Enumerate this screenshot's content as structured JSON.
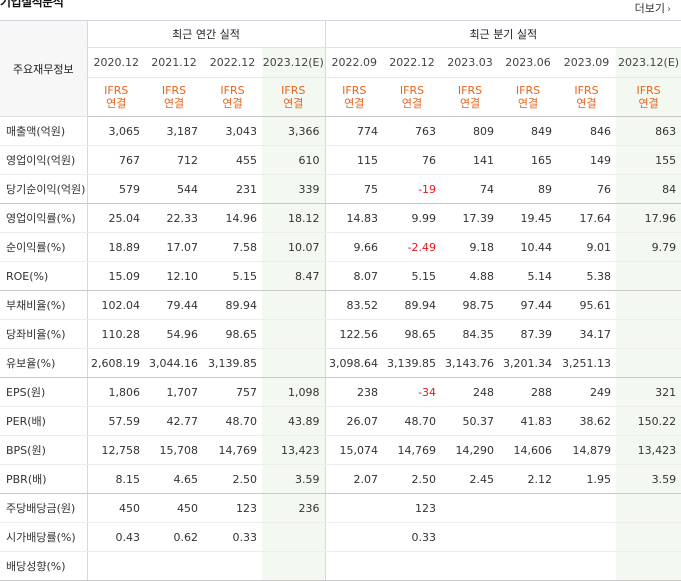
{
  "header": {
    "title": "기업실적분석",
    "more": "더보기"
  },
  "table": {
    "row_header": "주요재무정보",
    "groups": [
      {
        "label": "최근 연간 실적"
      },
      {
        "label": "최근 분기 실적"
      }
    ],
    "periods": [
      "2020.12",
      "2021.12",
      "2022.12",
      "2023.12(E)",
      "2022.09",
      "2022.12",
      "2023.03",
      "2023.06",
      "2023.09",
      "2023.12(E)"
    ],
    "ifrs": {
      "line1": "IFRS",
      "line2": "연결"
    },
    "rows": [
      {
        "label": "매출액(억원)",
        "values": [
          "3,065",
          "3,187",
          "3,043",
          "3,366",
          "774",
          "763",
          "809",
          "849",
          "846",
          "863"
        ]
      },
      {
        "label": "영업이익(억원)",
        "values": [
          "767",
          "712",
          "455",
          "610",
          "115",
          "76",
          "141",
          "165",
          "149",
          "155"
        ]
      },
      {
        "label": "당기순이익(억원)",
        "values": [
          "579",
          "544",
          "231",
          "339",
          "75",
          "-19",
          "74",
          "89",
          "76",
          "84"
        ]
      },
      {
        "label": "영업이익률(%)",
        "values": [
          "25.04",
          "22.33",
          "14.96",
          "18.12",
          "14.83",
          "9.99",
          "17.39",
          "19.45",
          "17.64",
          "17.96"
        ]
      },
      {
        "label": "순이익률(%)",
        "values": [
          "18.89",
          "17.07",
          "7.58",
          "10.07",
          "9.66",
          "-2.49",
          "9.18",
          "10.44",
          "9.01",
          "9.79"
        ]
      },
      {
        "label": "ROE(%)",
        "values": [
          "15.09",
          "12.10",
          "5.15",
          "8.47",
          "8.07",
          "5.15",
          "4.88",
          "5.14",
          "5.38",
          ""
        ]
      },
      {
        "label": "부채비율(%)",
        "values": [
          "102.04",
          "79.44",
          "89.94",
          "",
          "83.52",
          "89.94",
          "98.75",
          "97.44",
          "95.61",
          ""
        ]
      },
      {
        "label": "당좌비율(%)",
        "values": [
          "110.28",
          "54.96",
          "98.65",
          "",
          "122.56",
          "98.65",
          "84.35",
          "87.39",
          "34.17",
          ""
        ]
      },
      {
        "label": "유보율(%)",
        "values": [
          "2,608.19",
          "3,044.16",
          "3,139.85",
          "",
          "3,098.64",
          "3,139.85",
          "3,143.76",
          "3,201.34",
          "3,251.13",
          ""
        ]
      },
      {
        "label": "EPS(원)",
        "values": [
          "1,806",
          "1,707",
          "757",
          "1,098",
          "238",
          "-34",
          "248",
          "288",
          "249",
          "321"
        ]
      },
      {
        "label": "PER(배)",
        "values": [
          "57.59",
          "42.77",
          "48.70",
          "43.89",
          "26.07",
          "48.70",
          "50.37",
          "41.83",
          "38.62",
          "150.22"
        ]
      },
      {
        "label": "BPS(원)",
        "values": [
          "12,758",
          "15,708",
          "14,769",
          "13,423",
          "15,074",
          "14,769",
          "14,290",
          "14,606",
          "14,879",
          "13,423"
        ]
      },
      {
        "label": "PBR(배)",
        "values": [
          "8.15",
          "4.65",
          "2.50",
          "3.59",
          "2.07",
          "2.50",
          "2.45",
          "2.12",
          "1.95",
          "3.59"
        ]
      },
      {
        "label": "주당배당금(원)",
        "values": [
          "450",
          "450",
          "123",
          "236",
          "",
          "123",
          "",
          "",
          "",
          ""
        ]
      },
      {
        "label": "시가배당률(%)",
        "values": [
          "0.43",
          "0.62",
          "0.33",
          "",
          "",
          "0.33",
          "",
          "",
          "",
          ""
        ]
      },
      {
        "label": "배당성향(%)",
        "values": [
          "",
          "",
          "",
          "",
          "",
          "",
          "",
          "",
          "",
          ""
        ]
      }
    ]
  },
  "colors": {
    "ifrs": "#e8641e",
    "negative": "#e0191e",
    "estimate_bg": "#f3f9f1",
    "header_bg": "#f7f7f7"
  }
}
